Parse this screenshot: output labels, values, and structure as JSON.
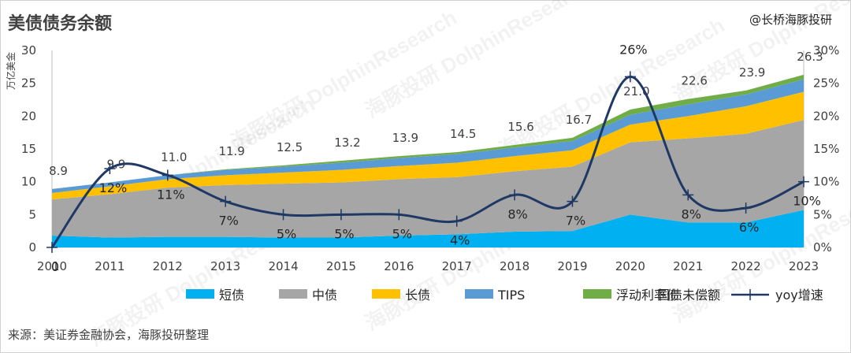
{
  "title": "美债债务余额",
  "brand": "@长桥海豚投研",
  "source": "来源：美证券金融协会，海豚投研整理",
  "watermark": "海豚投研 DolphinResearch",
  "chart_data": {
    "type": "area",
    "categories": [
      "2010",
      "2011",
      "2012",
      "2013",
      "2014",
      "2015",
      "2016",
      "2017",
      "2018",
      "2019",
      "2020",
      "2021",
      "2022",
      "2023"
    ],
    "y_left": {
      "label": "万亿美金",
      "min": 0,
      "max": 30,
      "ticks": [
        "0",
        "5",
        "10",
        "15",
        "20",
        "25",
        "30"
      ]
    },
    "y_right": {
      "min": 0,
      "max": 0.3,
      "ticks": [
        "0%",
        "5%",
        "10%",
        "15%",
        "20%",
        "25%",
        "30%"
      ]
    },
    "series": [
      {
        "name": "短债",
        "color": "#00b0f0",
        "values": [
          1.8,
          1.5,
          1.6,
          1.6,
          1.5,
          1.5,
          1.8,
          2.0,
          2.4,
          2.5,
          5.0,
          3.8,
          3.8,
          5.7
        ]
      },
      {
        "name": "中债",
        "color": "#a6a6a6",
        "values": [
          5.5,
          6.6,
          7.5,
          7.9,
          8.2,
          8.4,
          8.6,
          8.7,
          9.2,
          9.8,
          11.0,
          12.8,
          13.5,
          13.7
        ]
      },
      {
        "name": "长债",
        "color": "#ffc000",
        "values": [
          1.0,
          1.2,
          1.3,
          1.5,
          1.7,
          1.9,
          2.0,
          2.2,
          2.3,
          2.5,
          2.7,
          3.4,
          4.2,
          4.3
        ]
      },
      {
        "name": "TIPS",
        "color": "#5b9bd5",
        "values": [
          0.6,
          0.6,
          0.6,
          0.8,
          0.9,
          1.1,
          1.2,
          1.3,
          1.3,
          1.4,
          1.5,
          1.8,
          1.8,
          1.9
        ]
      },
      {
        "name": "浮动利率债",
        "color": "#70ad47",
        "values": [
          0,
          0,
          0,
          0.1,
          0.2,
          0.3,
          0.3,
          0.3,
          0.4,
          0.5,
          0.8,
          0.8,
          0.6,
          0.7
        ]
      }
    ],
    "total": {
      "name": "国债未偿额",
      "values": [
        8.9,
        9.9,
        11.0,
        11.9,
        12.5,
        13.2,
        13.9,
        14.5,
        15.6,
        16.7,
        21.0,
        22.6,
        23.9,
        26.3
      ],
      "labels": [
        "8.9",
        "9.9",
        "11.0",
        "11.9",
        "12.5",
        "13.2",
        "13.9",
        "14.5",
        "15.6",
        "16.7",
        "21.0",
        "22.6",
        "23.9",
        "26.3"
      ]
    },
    "yoy": {
      "name": "yoy增速",
      "color": "#1f3864",
      "values": [
        0,
        0.12,
        0.11,
        0.07,
        0.05,
        0.05,
        0.05,
        0.04,
        0.08,
        0.07,
        0.26,
        0.08,
        0.06,
        0.1
      ],
      "labels": [
        "0",
        "12%",
        "11%",
        "7%",
        "5%",
        "5%",
        "5%",
        "4%",
        "8%",
        "7%",
        "26%",
        "8%",
        "6%",
        "10%"
      ]
    }
  }
}
